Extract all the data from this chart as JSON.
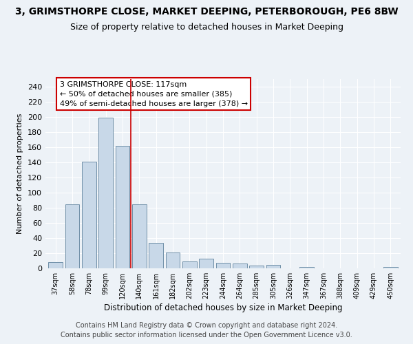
{
  "title": "3, GRIMSTHORPE CLOSE, MARKET DEEPING, PETERBOROUGH, PE6 8BW",
  "subtitle": "Size of property relative to detached houses in Market Deeping",
  "xlabel": "Distribution of detached houses by size in Market Deeping",
  "ylabel": "Number of detached properties",
  "categories": [
    "37sqm",
    "58sqm",
    "78sqm",
    "99sqm",
    "120sqm",
    "140sqm",
    "161sqm",
    "182sqm",
    "202sqm",
    "223sqm",
    "244sqm",
    "264sqm",
    "285sqm",
    "305sqm",
    "326sqm",
    "347sqm",
    "367sqm",
    "388sqm",
    "409sqm",
    "429sqm",
    "450sqm"
  ],
  "values": [
    8,
    85,
    141,
    199,
    162,
    85,
    34,
    21,
    9,
    13,
    7,
    6,
    4,
    5,
    0,
    2,
    0,
    0,
    0,
    0,
    2
  ],
  "bar_color": "#c8d8e8",
  "bar_edge_color": "#7090a8",
  "vline_x": 4.5,
  "vline_color": "#cc0000",
  "annotation_text": "3 GRIMSTHORPE CLOSE: 117sqm\n← 50% of detached houses are smaller (385)\n49% of semi-detached houses are larger (378) →",
  "annotation_box_color": "#ffffff",
  "annotation_box_edge_color": "#cc0000",
  "ylim": [
    0,
    250
  ],
  "yticks": [
    0,
    20,
    40,
    60,
    80,
    100,
    120,
    140,
    160,
    180,
    200,
    220,
    240
  ],
  "footer_line1": "Contains HM Land Registry data © Crown copyright and database right 2024.",
  "footer_line2": "Contains public sector information licensed under the Open Government Licence v3.0.",
  "background_color": "#edf2f7",
  "plot_bg_color": "#edf2f7",
  "title_fontsize": 10,
  "subtitle_fontsize": 9,
  "footer_fontsize": 7
}
